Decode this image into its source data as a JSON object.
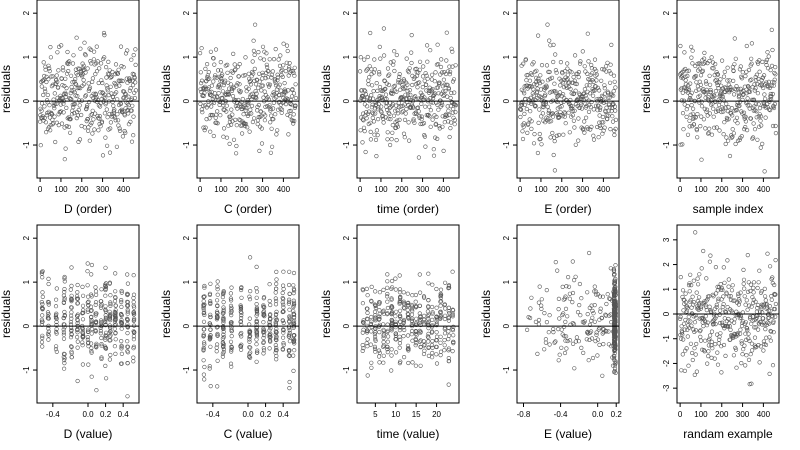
{
  "figure": {
    "background": "#ffffff",
    "point_color": "#555555",
    "axis_color": "#000000"
  },
  "chart_data": [
    {
      "type": "scatter",
      "title": "",
      "xlabel": "D (order)",
      "ylabel": "residuals",
      "xlim": [
        -15,
        475
      ],
      "ylim": [
        -1.75,
        2.3
      ],
      "xticks": [
        0,
        100,
        200,
        300,
        400
      ],
      "xtick_labels": [
        "0",
        "100",
        "200",
        "300",
        "400"
      ],
      "yticks": [
        -1,
        0,
        1,
        2
      ],
      "ytick_labels": [
        "-1",
        "0",
        "1",
        "2"
      ],
      "reference_line_y": 0,
      "grid": false,
      "n_points": 400,
      "points": {
        "x_mode": "uniform",
        "x_range": [
          0,
          460
        ],
        "y_mean": 0.1,
        "y_sd": 0.5,
        "y_range": [
          -1.6,
          2.25
        ],
        "seed": 11
      }
    },
    {
      "type": "scatter",
      "title": "",
      "xlabel": "C (order)",
      "ylabel": "residuals",
      "xlim": [
        -15,
        475
      ],
      "ylim": [
        -1.75,
        2.3
      ],
      "xticks": [
        0,
        100,
        200,
        300,
        400
      ],
      "xtick_labels": [
        "0",
        "100",
        "200",
        "300",
        "400"
      ],
      "yticks": [
        -1,
        0,
        1,
        2
      ],
      "ytick_labels": [
        "-1",
        "0",
        "1",
        "2"
      ],
      "reference_line_y": 0,
      "grid": false,
      "n_points": 400,
      "points": {
        "x_mode": "uniform",
        "x_range": [
          0,
          460
        ],
        "y_mean": 0.1,
        "y_sd": 0.5,
        "y_range": [
          -1.6,
          2.25
        ],
        "seed": 23
      }
    },
    {
      "type": "scatter",
      "title": "",
      "xlabel": "time (order)",
      "ylabel": "residuals",
      "xlim": [
        -15,
        475
      ],
      "ylim": [
        -1.75,
        2.3
      ],
      "xticks": [
        0,
        100,
        200,
        300,
        400
      ],
      "xtick_labels": [
        "0",
        "100",
        "200",
        "300",
        "400"
      ],
      "yticks": [
        -1,
        0,
        1,
        2
      ],
      "ytick_labels": [
        "-1",
        "0",
        "1",
        "2"
      ],
      "reference_line_y": 0,
      "grid": false,
      "n_points": 400,
      "points": {
        "x_mode": "uniform",
        "x_range": [
          0,
          460
        ],
        "y_mean": 0.1,
        "y_sd": 0.5,
        "y_range": [
          -1.6,
          2.25
        ],
        "seed": 37
      }
    },
    {
      "type": "scatter",
      "title": "",
      "xlabel": "E (order)",
      "ylabel": "residuals",
      "xlim": [
        -15,
        475
      ],
      "ylim": [
        -1.75,
        2.3
      ],
      "xticks": [
        0,
        100,
        200,
        300,
        400
      ],
      "xtick_labels": [
        "0",
        "100",
        "200",
        "300",
        "400"
      ],
      "yticks": [
        -1,
        0,
        1,
        2
      ],
      "ytick_labels": [
        "-1",
        "0",
        "1",
        "2"
      ],
      "reference_line_y": 0,
      "grid": false,
      "n_points": 400,
      "points": {
        "x_mode": "uniform",
        "x_range": [
          0,
          460
        ],
        "y_mean": 0.1,
        "y_sd": 0.5,
        "y_range": [
          -1.6,
          2.25
        ],
        "seed": 41
      }
    },
    {
      "type": "scatter",
      "title": "",
      "xlabel": "sample index",
      "ylabel": "residuals",
      "xlim": [
        -15,
        475
      ],
      "ylim": [
        -1.75,
        2.3
      ],
      "xticks": [
        0,
        100,
        200,
        300,
        400
      ],
      "xtick_labels": [
        "0",
        "100",
        "200",
        "300",
        "400"
      ],
      "yticks": [
        -1,
        0,
        1,
        2
      ],
      "ytick_labels": [
        "-1",
        "0",
        "1",
        "2"
      ],
      "reference_line_y": 0,
      "grid": false,
      "n_points": 400,
      "points": {
        "x_mode": "uniform",
        "x_range": [
          0,
          460
        ],
        "y_mean": 0.1,
        "y_sd": 0.5,
        "y_range": [
          -1.6,
          2.25
        ],
        "seed": 53
      }
    },
    {
      "type": "scatter",
      "title": "",
      "xlabel": "D (value)",
      "ylabel": "residuals",
      "xlim": [
        -0.58,
        0.58
      ],
      "ylim": [
        -1.75,
        2.3
      ],
      "xticks": [
        -0.4,
        0.0,
        0.2,
        0.4
      ],
      "xtick_labels": [
        "-0.4",
        "0.0",
        "0.2",
        "0.4"
      ],
      "yticks": [
        -1,
        0,
        1,
        2
      ],
      "ytick_labels": [
        "-1",
        "0",
        "1",
        "2"
      ],
      "reference_line_y": 0,
      "grid": false,
      "n_points": 400,
      "points": {
        "x_mode": "clusters",
        "x_centers": [
          -0.52,
          -0.45,
          -0.36,
          -0.27,
          -0.19,
          -0.12,
          -0.06,
          0.0,
          0.04,
          0.09,
          0.15,
          0.2,
          0.25,
          0.31,
          0.38,
          0.45,
          0.52
        ],
        "x_jitter": 0.006,
        "y_mean": 0.1,
        "y_sd": 0.5,
        "y_range": [
          -1.6,
          2.25
        ],
        "seed": 61
      }
    },
    {
      "type": "scatter",
      "title": "",
      "xlabel": "C (value)",
      "ylabel": "residuals",
      "xlim": [
        -0.58,
        0.58
      ],
      "ylim": [
        -1.75,
        2.3
      ],
      "xticks": [
        -0.4,
        0.0,
        0.2,
        0.4
      ],
      "xtick_labels": [
        "-0.4",
        "0.0",
        "0.2",
        "0.4"
      ],
      "yticks": [
        -1,
        0,
        1,
        2
      ],
      "ytick_labels": [
        "-1",
        "0",
        "1",
        "2"
      ],
      "reference_line_y": 0,
      "grid": false,
      "n_points": 400,
      "points": {
        "x_mode": "clusters",
        "x_centers": [
          -0.5,
          -0.43,
          -0.35,
          -0.28,
          -0.19,
          -0.08,
          0.02,
          0.1,
          0.18,
          0.25,
          0.32,
          0.4,
          0.47,
          0.52
        ],
        "x_jitter": 0.006,
        "y_mean": 0.1,
        "y_sd": 0.5,
        "y_range": [
          -1.6,
          2.25
        ],
        "seed": 71
      }
    },
    {
      "type": "scatter",
      "title": "",
      "xlabel": "time (value)",
      "ylabel": "residuals",
      "xlim": [
        0.5,
        25.5
      ],
      "ylim": [
        -1.75,
        2.3
      ],
      "xticks": [
        5,
        10,
        15,
        20
      ],
      "xtick_labels": [
        "5",
        "10",
        "15",
        "20"
      ],
      "yticks": [
        -1,
        0,
        1,
        2
      ],
      "ytick_labels": [
        "-1",
        "0",
        "1",
        "2"
      ],
      "reference_line_y": 0,
      "grid": false,
      "n_points": 400,
      "points": {
        "x_mode": "clusters",
        "x_centers": [
          2,
          3,
          4,
          5,
          6,
          7,
          8,
          9,
          10,
          11,
          12,
          13,
          14,
          15,
          16,
          17,
          18,
          19,
          20,
          21,
          22,
          23,
          24
        ],
        "x_jitter": 0.12,
        "y_mean": 0.1,
        "y_sd": 0.5,
        "y_range": [
          -1.6,
          2.25
        ],
        "seed": 83
      }
    },
    {
      "type": "scatter",
      "title": "",
      "xlabel": "E (value)",
      "ylabel": "residuals",
      "xlim": [
        -0.87,
        0.23
      ],
      "ylim": [
        -1.75,
        2.3
      ],
      "xticks": [
        -0.8,
        -0.4,
        0.0,
        0.2
      ],
      "xtick_labels": [
        "-0.8",
        "-0.4",
        "0.0",
        "0.2"
      ],
      "yticks": [
        -1,
        0,
        1,
        2
      ],
      "ytick_labels": [
        "-1",
        "0",
        "1",
        "2"
      ],
      "reference_line_y": 0,
      "grid": false,
      "n_points": 400,
      "points": {
        "x_mode": "skewed",
        "x_range": [
          -0.82,
          0.2
        ],
        "x_mass_at": 0.185,
        "mass_fraction": 0.55,
        "x_jitter": 0.01,
        "y_mean": 0.1,
        "y_sd": 0.5,
        "y_range": [
          -1.6,
          2.25
        ],
        "seed": 97
      }
    },
    {
      "type": "scatter",
      "title": "",
      "xlabel": "randam example",
      "ylabel": "residuals",
      "xlim": [
        -15,
        475
      ],
      "ylim": [
        -3.6,
        3.6
      ],
      "xticks": [
        0,
        100,
        200,
        300,
        400
      ],
      "xtick_labels": [
        "0",
        "100",
        "200",
        "300",
        "400"
      ],
      "yticks": [
        -3,
        -2,
        -1,
        0,
        1,
        2,
        3
      ],
      "ytick_labels": [
        "-3",
        "-2",
        "-1",
        "0",
        "1",
        "2",
        "3"
      ],
      "reference_line_y": 0,
      "grid": false,
      "n_points": 400,
      "points": {
        "x_mode": "uniform",
        "x_range": [
          0,
          460
        ],
        "y_mean": 0.0,
        "y_sd": 1.0,
        "y_range": [
          -3.3,
          3.3
        ],
        "seed": 107
      }
    }
  ]
}
